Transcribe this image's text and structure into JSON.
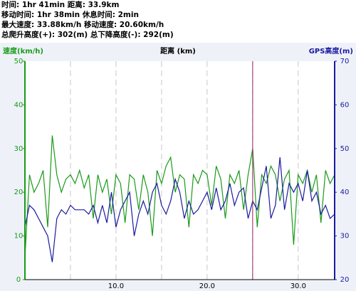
{
  "summary": [
    "时间: 1hr 41min  距离: 33.9km",
    "移动时间: 1hr 38min  休息时间: 2min",
    "最大速度: 33.88km/h  移动速度: 20.60km/h",
    "总爬升高度(+): 302(m)  总下降高度(-): 292(m)"
  ],
  "chart_data": {
    "type": "line",
    "xlabel": "距离 (km)",
    "ylabel": "速度(km/h)",
    "y2label": "GPS高度(m)",
    "x": [
      0,
      0.5,
      1,
      1.5,
      2,
      2.5,
      3,
      3.5,
      4,
      4.5,
      5,
      5.5,
      6,
      6.5,
      7,
      7.5,
      8,
      8.5,
      9,
      9.5,
      10,
      10.5,
      11,
      11.5,
      12,
      12.5,
      13,
      13.5,
      14,
      14.5,
      15,
      15.5,
      16,
      16.5,
      17,
      17.5,
      18,
      18.5,
      19,
      19.5,
      20,
      20.5,
      21,
      21.5,
      22,
      22.5,
      23,
      23.5,
      24,
      24.5,
      25,
      25.5,
      26,
      26.5,
      27,
      27.5,
      28,
      28.5,
      29,
      29.5,
      30,
      30.5,
      31,
      31.5,
      32,
      32.5,
      33,
      33.5,
      34
    ],
    "series": [
      {
        "name": "速度",
        "color": "#1a9a1a",
        "values": [
          5,
          24,
          20,
          22,
          25,
          12,
          33,
          24,
          20,
          23,
          24,
          22,
          25,
          21,
          24,
          14,
          24,
          20,
          23,
          15,
          24,
          22,
          13,
          24,
          23,
          16,
          24,
          20,
          10,
          25,
          22,
          26,
          28,
          20,
          24,
          23,
          12,
          24,
          22,
          25,
          24,
          17,
          26,
          23,
          14,
          24,
          22,
          25,
          16,
          24,
          30,
          12,
          24,
          22,
          26,
          24,
          18,
          23,
          25,
          8,
          24,
          22,
          25,
          20,
          24,
          13,
          25,
          22,
          24
        ]
      },
      {
        "name": "GPS高度",
        "color": "#1a1aa0",
        "axis": "y2",
        "values": [
          32,
          37,
          36,
          34,
          32,
          30,
          24,
          34,
          36,
          35,
          37,
          36,
          36,
          36,
          35,
          37,
          33,
          37,
          33,
          40,
          32,
          36,
          38,
          40,
          30,
          35,
          38,
          35,
          40,
          42,
          37,
          35,
          38,
          43,
          40,
          34,
          38,
          35,
          36,
          38,
          40,
          36,
          41,
          36,
          38,
          42,
          37,
          40,
          41,
          34,
          38,
          36,
          41,
          46,
          34,
          37,
          48,
          36,
          42,
          40,
          42,
          38,
          45,
          38,
          40,
          35,
          37,
          34,
          35
        ]
      }
    ],
    "xlim": [
      0,
      34
    ],
    "xticks": [
      {
        "value": 10,
        "label": "10.0"
      },
      {
        "value": 20,
        "label": "20.0"
      },
      {
        "value": 30,
        "label": "30.0"
      }
    ],
    "xminor": [
      5,
      15,
      25
    ],
    "ylim": [
      0,
      50
    ],
    "yticks": [
      0,
      10,
      20,
      30,
      40,
      50
    ],
    "y2lim": [
      20,
      70
    ],
    "y2ticks": [
      20,
      30,
      40,
      50,
      60,
      70
    ],
    "cursor_x": 25,
    "cursor_color": "#a0206a",
    "grid": true
  }
}
